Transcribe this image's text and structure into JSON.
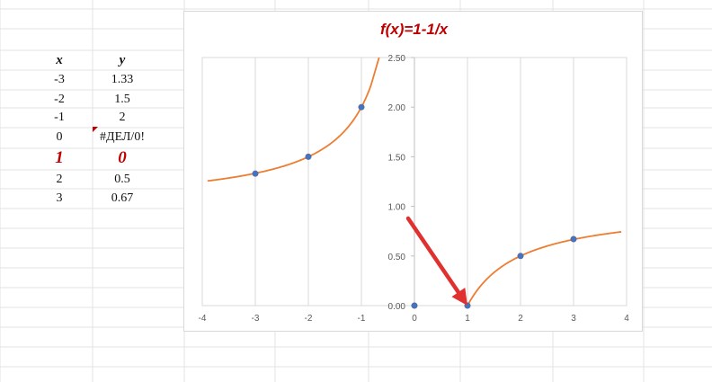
{
  "table": {
    "headers": {
      "x": "x",
      "y": "y"
    },
    "rows": [
      {
        "x": "-3",
        "y": "1.33"
      },
      {
        "x": "-2",
        "y": "1.5"
      },
      {
        "x": "-1",
        "y": "2"
      },
      {
        "x": "0",
        "y": "#ДЕЛ/0!"
      },
      {
        "x": "1",
        "y": "0"
      },
      {
        "x": "2",
        "y": "0.5"
      },
      {
        "x": "3",
        "y": "0.67"
      }
    ]
  },
  "colors": {
    "highlight": "#c00000",
    "curve": "#ED7D31",
    "points": "#4472C4",
    "arrow": "#e03030",
    "gridline": "#d9d9d9"
  },
  "chart_data": {
    "type": "scatter",
    "title": "f(x)=1-1/x",
    "xlim": [
      -4,
      4
    ],
    "ylim": [
      0,
      2.5
    ],
    "x_ticks": [
      "-4",
      "-3",
      "-2",
      "-1",
      "0",
      "1",
      "2",
      "3",
      "4"
    ],
    "y_ticks": [
      "0.00",
      "0.50",
      "1.00",
      "1.50",
      "2.00",
      "2.50"
    ],
    "grid": "vertical",
    "points": [
      {
        "x": -3,
        "y": 1.33
      },
      {
        "x": -2,
        "y": 1.5
      },
      {
        "x": -1,
        "y": 2
      },
      {
        "x": 0,
        "y": 0
      },
      {
        "x": 1,
        "y": 0
      },
      {
        "x": 2,
        "y": 0.5
      },
      {
        "x": 3,
        "y": 0.67
      }
    ],
    "curve": "1-1/x",
    "annotation": {
      "type": "arrow",
      "target": {
        "x": 1,
        "y": 0
      }
    }
  }
}
